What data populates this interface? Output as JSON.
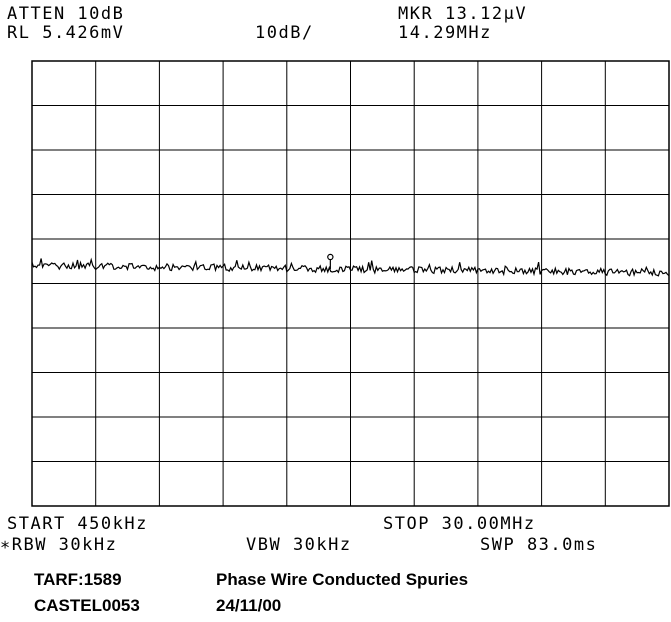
{
  "header": {
    "atten": "ATTEN 10dB",
    "rl": "RL 5.426mV",
    "scale": "10dB/",
    "mkr_amp": "MKR 13.12µV",
    "mkr_freq": "14.29MHz"
  },
  "footer": {
    "start": "START 450kHz",
    "stop": "STOP 30.00MHz",
    "rbw": "∗RBW 30kHz",
    "vbw": "VBW 30kHz",
    "swp": "SWP 83.0ms"
  },
  "annotation": {
    "ref": "TARF:1589",
    "title": "Phase Wire Conducted Spuries",
    "id": "CASTEL0053",
    "date": "24/11/00"
  },
  "chart_data": {
    "type": "line",
    "x_start_mhz": 0.45,
    "x_stop_mhz": 30.0,
    "y_divisions": 10,
    "x_divisions": 10,
    "scale_db_per_div": 10,
    "reference_level": "5.426mV",
    "grid": true,
    "trace_level_div_below_ref": 4.6,
    "marker": {
      "freq_mhz": 14.29,
      "amp": "13.12µV"
    },
    "noise_floor": "approximately flat noise trace across full span"
  }
}
